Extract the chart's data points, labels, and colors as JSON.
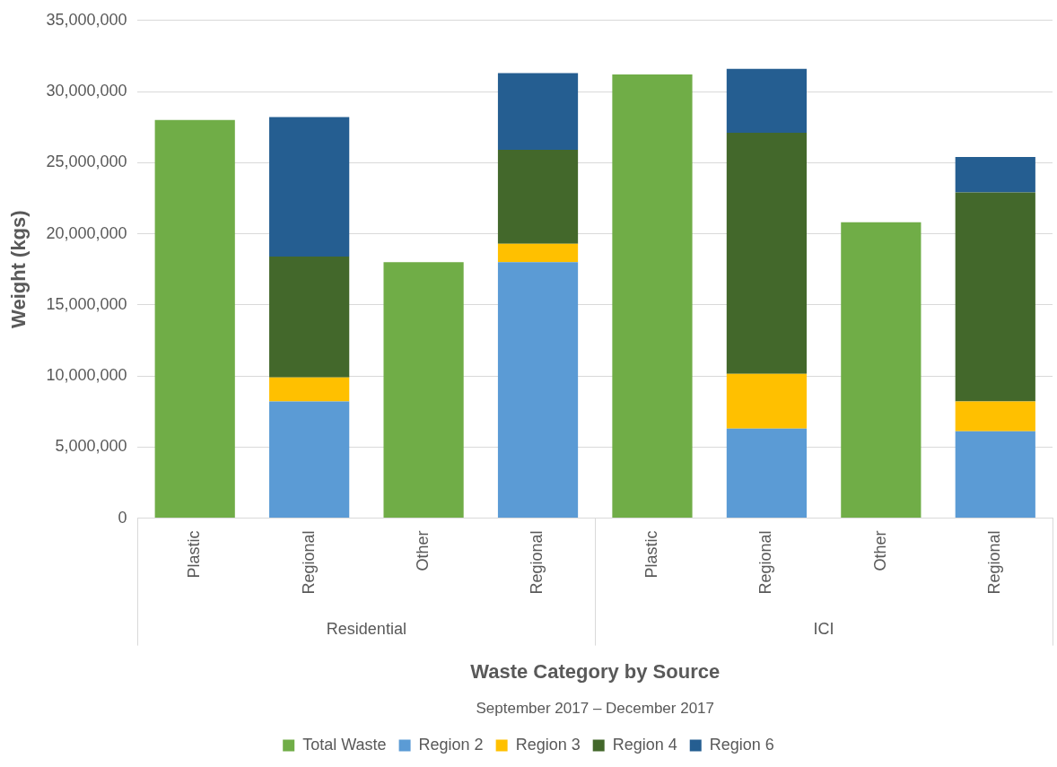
{
  "chart_data": {
    "type": "bar",
    "stacked": true,
    "categories": [
      "Plastic",
      "Regional",
      "Other",
      "Regional",
      "Plastic",
      "Regional",
      "Other",
      "Regional"
    ],
    "xlabel": "Waste Category by Source",
    "ylabel": "Weight (kgs)",
    "annotations": [
      "Residential",
      "ICI",
      "September 2017 – December 2017"
    ],
    "series": [
      {
        "name": "Total Waste",
        "color": "#70ad47",
        "values": [
          28000000,
          null,
          18000000,
          null,
          31200000,
          null,
          20800000,
          null
        ]
      },
      {
        "name": "Region 2",
        "color": "#5b9bd5",
        "values": [
          null,
          8200000,
          null,
          18000000,
          null,
          6300000,
          null,
          6100000
        ]
      },
      {
        "name": "Region 3",
        "color": "#ffc000",
        "values": [
          null,
          1700000,
          null,
          1300000,
          null,
          3850000,
          null,
          2100000
        ]
      },
      {
        "name": "Region 4",
        "color": "#43682b",
        "values": [
          null,
          8500000,
          null,
          6600000,
          null,
          16950000,
          null,
          14700000
        ]
      },
      {
        "name": "Region 6",
        "color": "#255e91",
        "values": [
          null,
          9800000,
          null,
          5400000,
          null,
          4500000,
          null,
          2500000
        ]
      }
    ],
    "ylim": [
      0,
      35000000
    ],
    "yticks": [
      0,
      {
        "value": 5000000,
        "label": "5,000,000"
      },
      {
        "value": 10000000,
        "label": "10,000,000"
      },
      {
        "value": 15000000,
        "label": "15,000,000"
      },
      {
        "value": 20000000,
        "label": "20,000,000"
      },
      {
        "value": 25000000,
        "label": "25,000,000"
      },
      {
        "value": 30000000,
        "label": "30,000,000"
      },
      {
        "value": 35000000,
        "label": "35,000,000"
      }
    ],
    "grid": "y",
    "legend": "bottom"
  }
}
